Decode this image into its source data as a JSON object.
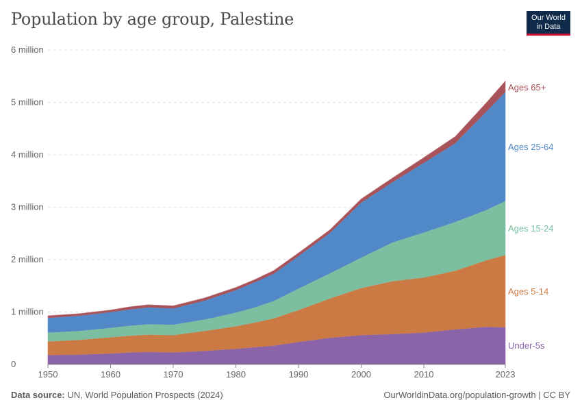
{
  "header": {
    "title": "Population by age group, Palestine",
    "logo_line1": "Our World",
    "logo_line2": "in Data"
  },
  "footer": {
    "source_label": "Data source:",
    "source_text": "UN, World Population Prospects (2024)",
    "url_text": "OurWorldinData.org/population-growth | CC BY"
  },
  "colors": {
    "Under-5s": "#8a63a8",
    "Ages 5-14": "#cc7a44",
    "Ages 15-24": "#7bbfa0",
    "Ages 25-64": "#5188c8",
    "Ages 65+": "#a8525a"
  },
  "chart_data": {
    "type": "area",
    "stacked": true,
    "x": [
      1950,
      1955,
      1960,
      1963,
      1966,
      1970,
      1975,
      1980,
      1983,
      1986,
      1990,
      1995,
      2000,
      2005,
      2010,
      2015,
      2020,
      2023
    ],
    "series": [
      {
        "name": "Under-5s",
        "values": [
          0.18,
          0.19,
          0.21,
          0.23,
          0.24,
          0.23,
          0.26,
          0.3,
          0.33,
          0.36,
          0.43,
          0.51,
          0.56,
          0.58,
          0.61,
          0.67,
          0.72,
          0.71
        ]
      },
      {
        "name": "Ages 5-14",
        "values": [
          0.26,
          0.28,
          0.31,
          0.32,
          0.33,
          0.33,
          0.38,
          0.43,
          0.47,
          0.52,
          0.61,
          0.75,
          0.9,
          1.01,
          1.05,
          1.12,
          1.27,
          1.38
        ]
      },
      {
        "name": "Ages 15-24",
        "values": [
          0.17,
          0.17,
          0.18,
          0.19,
          0.2,
          0.2,
          0.22,
          0.26,
          0.29,
          0.33,
          0.41,
          0.48,
          0.58,
          0.74,
          0.86,
          0.93,
          0.96,
          1.03
        ]
      },
      {
        "name": "Ages 25-64",
        "values": [
          0.28,
          0.29,
          0.3,
          0.31,
          0.32,
          0.31,
          0.36,
          0.43,
          0.48,
          0.52,
          0.62,
          0.77,
          1.05,
          1.15,
          1.33,
          1.5,
          1.88,
          2.08
        ]
      },
      {
        "name": "Ages 65+",
        "values": [
          0.04,
          0.04,
          0.04,
          0.05,
          0.05,
          0.05,
          0.05,
          0.05,
          0.05,
          0.06,
          0.06,
          0.06,
          0.07,
          0.08,
          0.1,
          0.13,
          0.17,
          0.21
        ]
      }
    ],
    "yticks": [
      0,
      1,
      2,
      3,
      4,
      5,
      6
    ],
    "ytick_labels": [
      "0",
      "1 million",
      "2 million",
      "3 million",
      "4 million",
      "5 million",
      "6 million"
    ],
    "xticks": [
      1950,
      1960,
      1970,
      1980,
      1990,
      2000,
      2010,
      2023
    ],
    "xtick_labels": [
      "1950",
      "1960",
      "1970",
      "1980",
      "1990",
      "2000",
      "2010",
      "2023"
    ],
    "ylim": [
      0,
      6
    ],
    "xlim": [
      1950,
      2023
    ],
    "legend": "inline-right",
    "grid": true
  }
}
